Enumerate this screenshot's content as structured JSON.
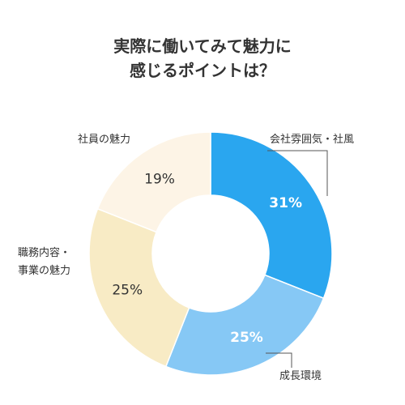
{
  "title": {
    "line1": "実際に働いてみて魅力に",
    "line2": "感じるポイントは？"
  },
  "chart_data": {
    "type": "pie",
    "title": "実際に働いてみて魅力に感じるポイントは？",
    "slices": [
      {
        "label": "会社雰囲気・社風",
        "value": 31,
        "value_label": "31%",
        "color": "#2aa6ef",
        "text_color": "#ffffff",
        "bold": true
      },
      {
        "label": "成長環境",
        "value": 25,
        "value_label": "25%",
        "color": "#86c8f5",
        "text_color": "#ffffff",
        "bold": true
      },
      {
        "label": "職務内容・事業の魅力",
        "label_lines": [
          "職務内容・",
          "事業の魅力"
        ],
        "value": 25,
        "value_label": "25%",
        "color": "#f8ebc5",
        "text_color": "#333333",
        "bold": false
      },
      {
        "label": "社員の魅力",
        "value": 19,
        "value_label": "19%",
        "color": "#fdf4e6",
        "text_color": "#333333",
        "bold": false
      }
    ],
    "legend": "none"
  }
}
